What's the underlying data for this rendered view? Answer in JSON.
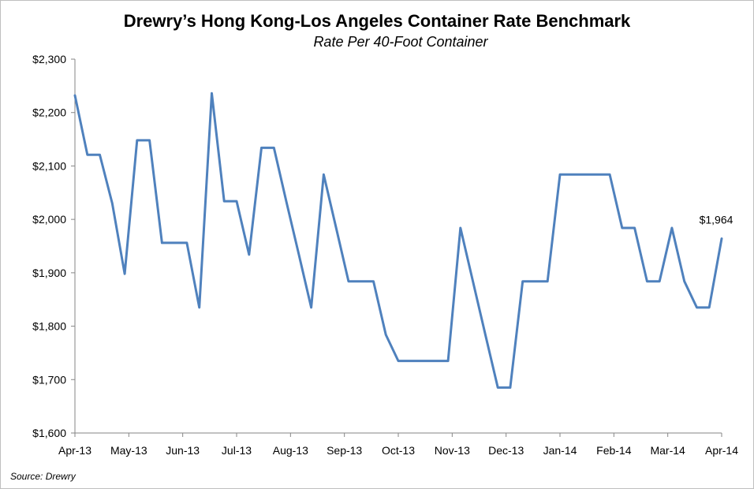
{
  "chart_data": {
    "type": "line",
    "title": "Drewry’s Hong Kong-Los Angeles Container Rate Benchmark",
    "subtitle": "Rate Per 40-Foot Container",
    "source": "Source: Drewry",
    "xlabel": "",
    "ylabel": "",
    "ylim": [
      1600,
      2300
    ],
    "y_ticks": [
      1600,
      1700,
      1800,
      1900,
      2000,
      2100,
      2200,
      2300
    ],
    "y_tick_labels": [
      "$1,600",
      "$1,700",
      "$1,800",
      "$1,900",
      "$2,000",
      "$2,100",
      "$2,200",
      "$2,300"
    ],
    "x_tick_labels": [
      "Apr-13",
      "May-13",
      "Jun-13",
      "Jul-13",
      "Aug-13",
      "Sep-13",
      "Oct-13",
      "Nov-13",
      "Dec-13",
      "Jan-14",
      "Feb-14",
      "Mar-14",
      "Apr-14"
    ],
    "grid": false,
    "legend": "none",
    "line_color": "#4f81bd",
    "series": [
      {
        "values": [
          2232,
          2121,
          2121,
          2030,
          1898,
          2148,
          2148,
          1956,
          1956,
          1956,
          1835,
          2236,
          2034,
          2034,
          1934,
          2134,
          2134,
          2033,
          1935,
          1835,
          2084,
          1984,
          1884,
          1884,
          1884,
          1784,
          1735,
          1735,
          1735,
          1735,
          1735,
          1984,
          1884,
          1784,
          1685,
          1685,
          1884,
          1884,
          1884,
          2084,
          2084,
          2084,
          2084,
          2084,
          1984,
          1984,
          1884,
          1884,
          1984,
          1884,
          1835,
          1835,
          1964
        ]
      }
    ],
    "annotation": {
      "label": "$1,964",
      "point_index": 52
    }
  }
}
